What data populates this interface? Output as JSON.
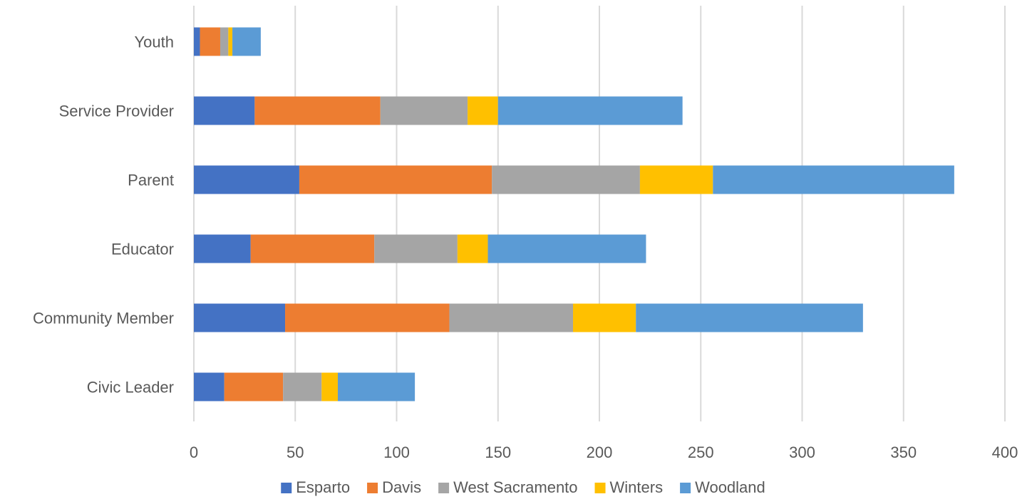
{
  "chart_data": {
    "type": "bar",
    "orientation": "horizontal",
    "stacked": true,
    "title": "",
    "xlabel": "",
    "ylabel": "",
    "categories": [
      "Civic Leader",
      "Community Member",
      "Educator",
      "Parent",
      "Service Provider",
      "Youth"
    ],
    "series": [
      {
        "name": "Esparto",
        "color": "#4472C4",
        "values": [
          15,
          45,
          28,
          52,
          30,
          3
        ]
      },
      {
        "name": "Davis",
        "color": "#ED7D31",
        "values": [
          29,
          81,
          61,
          95,
          62,
          10
        ]
      },
      {
        "name": "West Sacramento",
        "color": "#A5A5A5",
        "values": [
          19,
          61,
          41,
          73,
          43,
          4
        ]
      },
      {
        "name": "Winters",
        "color": "#FFC000",
        "values": [
          8,
          31,
          15,
          36,
          15,
          2
        ]
      },
      {
        "name": "Woodland",
        "color": "#5B9BD5",
        "values": [
          38,
          112,
          78,
          119,
          91,
          14
        ]
      }
    ],
    "xlim": [
      0,
      400
    ],
    "xticks": [
      0,
      50,
      100,
      150,
      200,
      250,
      300,
      350,
      400
    ],
    "grid": "vertical",
    "legend_position": "bottom"
  }
}
